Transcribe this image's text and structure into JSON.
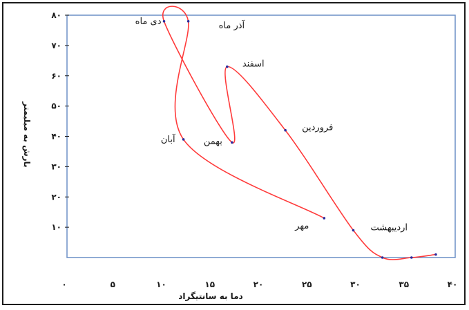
{
  "chart_data": {
    "type": "line",
    "xlabel": "دما به سانتیگراد",
    "ylabel": "بارش به میلیمتر",
    "xlim": [
      0,
      40
    ],
    "ylim": [
      0,
      80
    ],
    "x_ticks": [
      "۰",
      "۵",
      "۱۰",
      "۱۵",
      "۲۰",
      "۲۵",
      "۳۰",
      "۳۵",
      "۴۰"
    ],
    "y_ticks": [
      "۱۰",
      "۲۰",
      "۳۰",
      "۴۰",
      "۵۰",
      "۶۰",
      "۷۰",
      "۸۰"
    ],
    "grid": false,
    "line_color": "#ff3b3b",
    "marker_color": "#2b2b9e",
    "plot_border_color": "#6b8fc6",
    "points": [
      {
        "label": "مهر",
        "x": 26.5,
        "y": 13
      },
      {
        "label": "آبان",
        "x": 12,
        "y": 39
      },
      {
        "label": "آذر ماه",
        "x": 12.5,
        "y": 78
      },
      {
        "label": "دی ماه",
        "x": 10,
        "y": 78
      },
      {
        "label": "بهمن",
        "x": 17,
        "y": 38
      },
      {
        "label": "اسفند",
        "x": 16.5,
        "y": 63
      },
      {
        "label": "فروردین",
        "x": 22.5,
        "y": 42
      },
      {
        "label": "اردیبهشت",
        "x": 29.5,
        "y": 9
      },
      {
        "label": "",
        "x": 32.5,
        "y": 0
      },
      {
        "label": "",
        "x": 35.5,
        "y": 0
      },
      {
        "label": "",
        "x": 38,
        "y": 1
      }
    ]
  }
}
